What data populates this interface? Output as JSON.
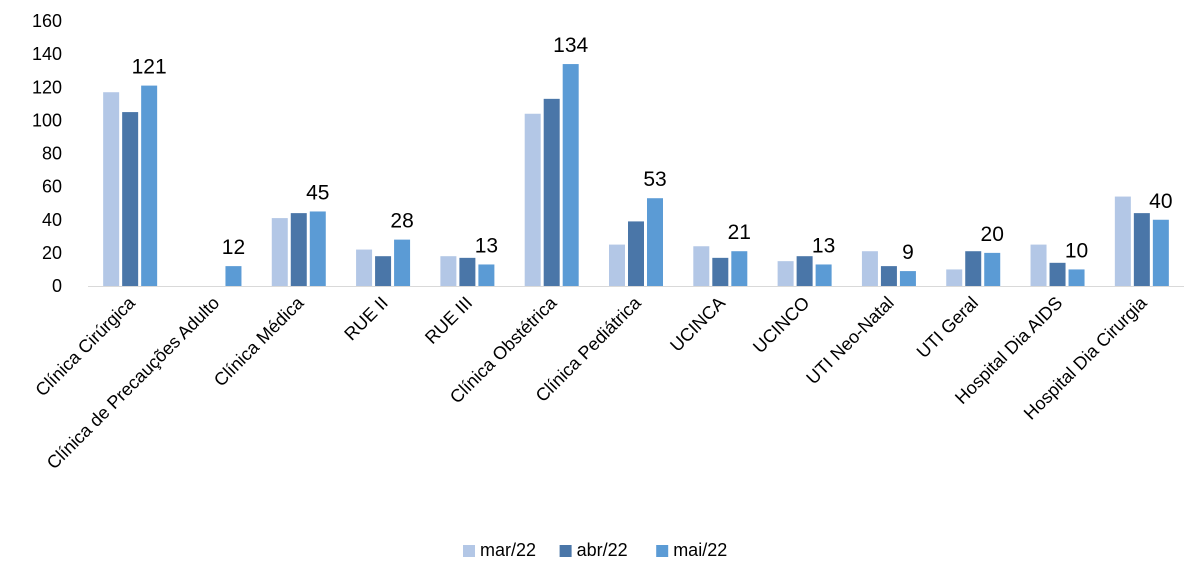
{
  "chart_data": {
    "type": "bar",
    "title": "",
    "xlabel": "",
    "ylabel": "",
    "ylim": [
      0,
      160
    ],
    "yticks": [
      0,
      20,
      40,
      60,
      80,
      100,
      120,
      140,
      160
    ],
    "grid": false,
    "legend_position": "bottom",
    "categories": [
      "Clínica Cirúrgica",
      "Clínica de Precauções Adulto",
      "Clínica Médica",
      "RUE II",
      "RUE III",
      "Clínica Obstétrica",
      "Clínica Pediátrica",
      "UCINCA",
      "UCINCO",
      "UTI Neo-Natal",
      "UTI Geral",
      "Hospital Dia AIDS",
      "Hospital Dia Cirurgia"
    ],
    "series": [
      {
        "name": "mar/22",
        "color": "#b3c7e6",
        "values": [
          117,
          0,
          41,
          22,
          18,
          104,
          25,
          24,
          15,
          21,
          10,
          25,
          54
        ]
      },
      {
        "name": "abr/22",
        "color": "#4a76a8",
        "values": [
          105,
          0,
          44,
          18,
          17,
          113,
          39,
          17,
          18,
          12,
          21,
          14,
          44
        ]
      },
      {
        "name": "mai/22",
        "color": "#5b9bd5",
        "values": [
          121,
          12,
          45,
          28,
          13,
          134,
          53,
          21,
          13,
          9,
          20,
          10,
          40
        ]
      }
    ],
    "data_labels": [
      "121",
      "12",
      "45",
      "28",
      "13",
      "134",
      "53",
      "21",
      "13",
      "9",
      "20",
      "10",
      "40"
    ]
  }
}
